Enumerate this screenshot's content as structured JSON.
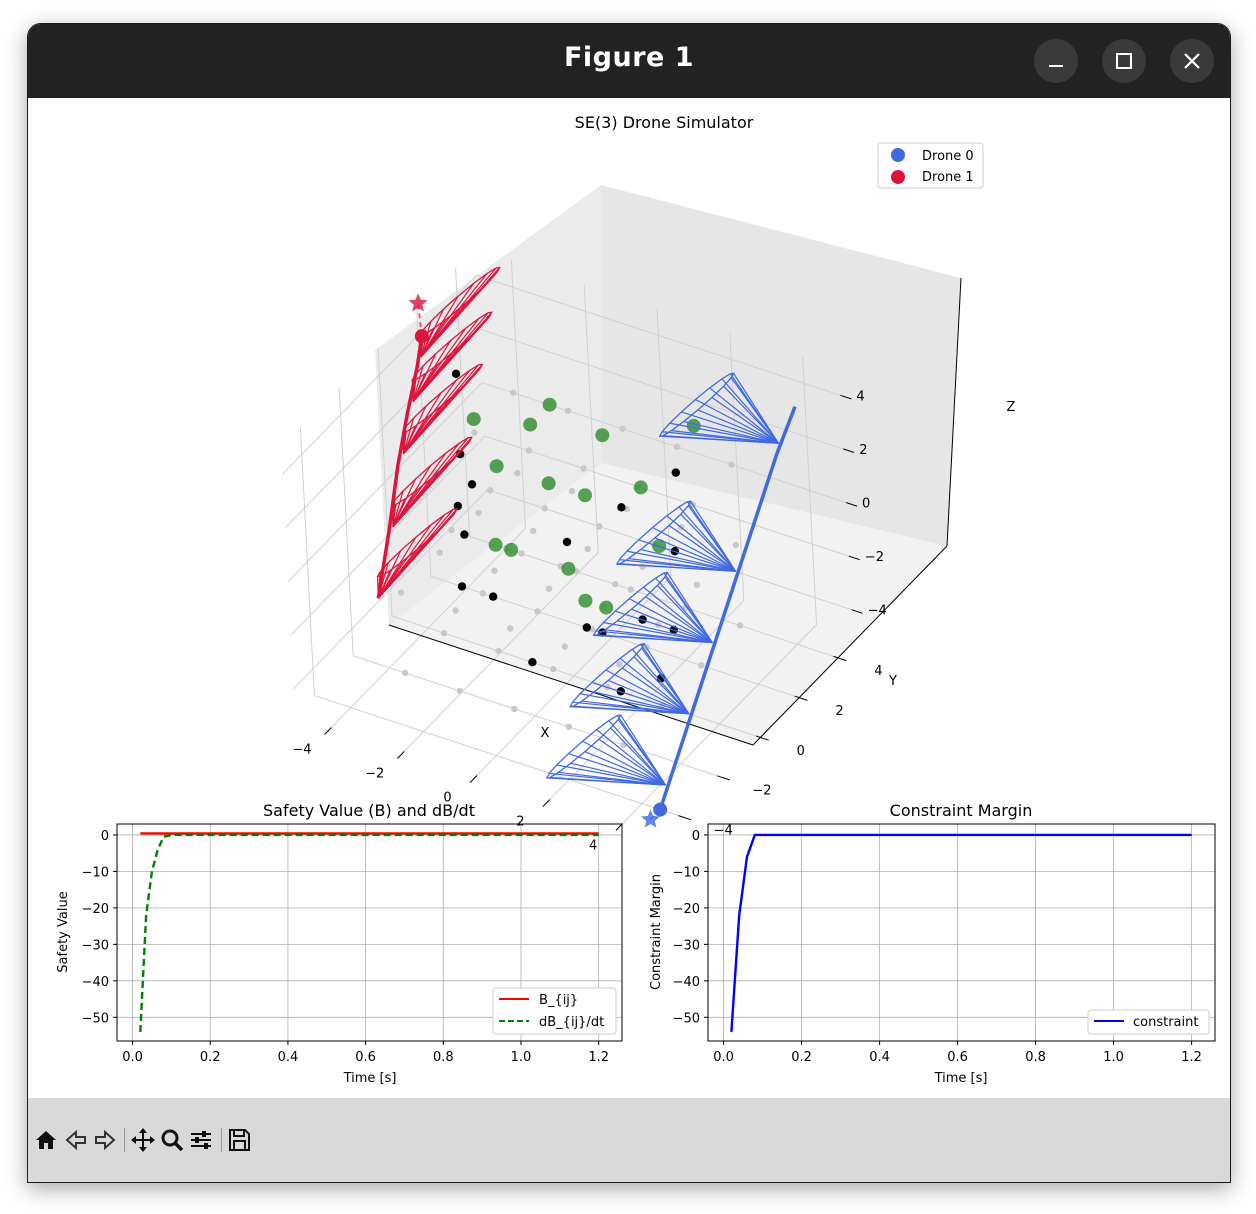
{
  "window": {
    "title": "Figure 1"
  },
  "toolbar": [
    "home-icon",
    "back-arrow-icon",
    "forward-arrow-icon",
    "pan-icon",
    "zoom-icon",
    "configure-subplots-icon",
    "save-icon"
  ],
  "colors": {
    "drone0": "#4169e1",
    "drone1": "#dc143c",
    "obstacle": "#2e8b2e",
    "safety": "#ff0000",
    "dbdt": "#008000",
    "constraint": "#0000ff"
  },
  "chart_data": [
    {
      "type": "scatter",
      "projection": "3d",
      "title": "SE(3) Drone Simulator",
      "xlabel": "X",
      "ylabel": "Y",
      "zlabel": "Z",
      "xlim": [
        -5,
        5
      ],
      "ylim": [
        -5,
        5
      ],
      "zlim": [
        -5,
        5
      ],
      "xticks": [
        "−4",
        "−2",
        "0",
        "2",
        "4"
      ],
      "yticks": [
        "−4",
        "−2",
        "0",
        "2",
        "4"
      ],
      "zticks": [
        "−4",
        "−2",
        "0",
        "2",
        "4"
      ],
      "legend_position": "top-right",
      "grid": true,
      "series": [
        {
          "name": "Drone 0",
          "color": "#4169e1",
          "trajectory": [
            [
              4.5,
              -4,
              -5
            ],
            [
              4.4,
              -2.5,
              -3.5
            ],
            [
              4.3,
              -1,
              -2
            ],
            [
              4.2,
              0.5,
              -0.5
            ],
            [
              4.1,
              2,
              1
            ],
            [
              4,
              3.5,
              2.5
            ],
            [
              4,
              4.5,
              3.5
            ]
          ],
          "goal": [
            4.5,
            -4.5,
            -5
          ]
        },
        {
          "name": "Drone 1",
          "color": "#dc143c",
          "trajectory": [
            [
              -4.5,
              -1.5,
              -3
            ],
            [
              -4.5,
              -0.8,
              -1
            ],
            [
              -4.5,
              -0.2,
              1
            ],
            [
              -4.5,
              0.4,
              2.5
            ],
            [
              -4.5,
              1,
              3.8
            ],
            [
              -4.5,
              1.3,
              4.7
            ]
          ],
          "goal": [
            -4.5,
            1.2,
            6
          ]
        }
      ]
    },
    {
      "type": "line",
      "title": "Safety Value (B) and dB/dt",
      "xlabel": "Time [s]",
      "ylabel": "Safety Value",
      "xlim": [
        -0.04,
        1.26
      ],
      "ylim": [
        -56.5,
        3
      ],
      "xticks": [
        "0.0",
        "0.2",
        "0.4",
        "0.6",
        "0.8",
        "1.0",
        "1.2"
      ],
      "yticks": [
        "0",
        "−10",
        "−20",
        "−30",
        "−40",
        "−50"
      ],
      "legend_position": "lower right",
      "grid": true,
      "series": [
        {
          "name": "B_{ij}",
          "style": "solid",
          "color": "#ff0000",
          "x": [
            0.02,
            0.1,
            0.2,
            0.4,
            0.6,
            0.8,
            1.0,
            1.2
          ],
          "y": [
            0.4,
            0.4,
            0.4,
            0.4,
            0.4,
            0.4,
            0.4,
            0.4
          ]
        },
        {
          "name": "dB_{ij}/dt",
          "style": "dashed",
          "color": "#008000",
          "x": [
            0.02,
            0.035,
            0.05,
            0.065,
            0.08,
            0.1,
            0.3,
            0.6,
            0.9,
            1.2
          ],
          "y": [
            -54,
            -22,
            -10,
            -4,
            -0.5,
            0,
            0,
            0,
            0,
            0
          ]
        }
      ]
    },
    {
      "type": "line",
      "title": "Constraint Margin",
      "xlabel": "Time [s]",
      "ylabel": "Constraint Margin",
      "xlim": [
        -0.04,
        1.26
      ],
      "ylim": [
        -56.5,
        3
      ],
      "xticks": [
        "0.0",
        "0.2",
        "0.4",
        "0.6",
        "0.8",
        "1.0",
        "1.2"
      ],
      "yticks": [
        "0",
        "−10",
        "−20",
        "−30",
        "−40",
        "−50"
      ],
      "legend_position": "lower right",
      "grid": true,
      "series": [
        {
          "name": "constraint",
          "style": "solid",
          "color": "#0000ff",
          "x": [
            0.02,
            0.04,
            0.06,
            0.08,
            0.1,
            0.3,
            0.6,
            0.9,
            1.2
          ],
          "y": [
            -54,
            -22,
            -6,
            0,
            0,
            0,
            0,
            0,
            0
          ]
        }
      ]
    }
  ]
}
